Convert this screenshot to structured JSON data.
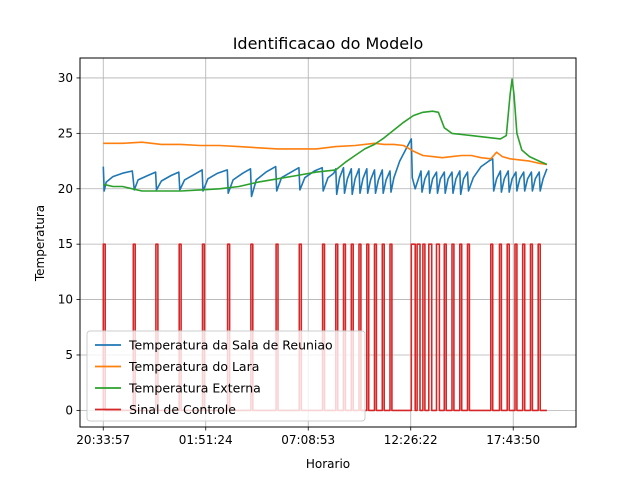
{
  "chart_data": {
    "type": "line",
    "title": "Identificacao do Modelo",
    "xlabel": "Horario",
    "ylabel": "Temperatura",
    "x_unit": "hours",
    "xlim": [
      -1.2,
      24.4
    ],
    "ylim": [
      -1.5,
      31.8
    ],
    "x_ticks": [
      {
        "value": 0.0,
        "label": "20:33:57"
      },
      {
        "value": 5.29,
        "label": "01:51:24"
      },
      {
        "value": 10.58,
        "label": "07:08:53"
      },
      {
        "value": 15.87,
        "label": "12:26:22"
      },
      {
        "value": 21.16,
        "label": "17:43:50"
      }
    ],
    "y_ticks": [
      0,
      5,
      10,
      15,
      20,
      25,
      30
    ],
    "grid": true,
    "legend_position": "lower-left",
    "series": [
      {
        "name": "Temperatura da Sala de Reuniao",
        "color": "#1f77b4",
        "points": [
          [
            0.0,
            22.0
          ],
          [
            0.05,
            19.8
          ],
          [
            0.15,
            20.6
          ],
          [
            0.5,
            21.1
          ],
          [
            1.0,
            21.4
          ],
          [
            1.5,
            21.6
          ],
          [
            1.6,
            19.9
          ],
          [
            1.8,
            20.8
          ],
          [
            2.3,
            21.2
          ],
          [
            2.7,
            21.5
          ],
          [
            2.75,
            19.9
          ],
          [
            3.0,
            20.7
          ],
          [
            3.5,
            21.2
          ],
          [
            3.9,
            21.5
          ],
          [
            3.95,
            19.9
          ],
          [
            4.2,
            20.8
          ],
          [
            4.7,
            21.3
          ],
          [
            5.1,
            21.7
          ],
          [
            5.15,
            19.8
          ],
          [
            5.4,
            20.9
          ],
          [
            5.9,
            21.4
          ],
          [
            6.4,
            21.7
          ],
          [
            6.45,
            19.6
          ],
          [
            6.7,
            20.8
          ],
          [
            7.2,
            21.4
          ],
          [
            7.6,
            21.8
          ],
          [
            7.65,
            19.3
          ],
          [
            7.9,
            20.8
          ],
          [
            8.4,
            21.5
          ],
          [
            8.9,
            22.0
          ],
          [
            8.95,
            19.8
          ],
          [
            9.2,
            21.0
          ],
          [
            9.7,
            21.5
          ],
          [
            10.1,
            21.9
          ],
          [
            10.15,
            19.9
          ],
          [
            10.4,
            21.0
          ],
          [
            10.9,
            21.6
          ],
          [
            11.3,
            21.9
          ],
          [
            11.35,
            19.8
          ],
          [
            11.6,
            21.0
          ],
          [
            11.9,
            21.4
          ],
          [
            12.0,
            21.8
          ],
          [
            12.05,
            19.5
          ],
          [
            12.2,
            21.0
          ],
          [
            12.4,
            21.9
          ],
          [
            12.45,
            19.6
          ],
          [
            12.6,
            20.9
          ],
          [
            12.8,
            21.8
          ],
          [
            12.85,
            19.5
          ],
          [
            13.0,
            20.9
          ],
          [
            13.2,
            21.8
          ],
          [
            13.25,
            19.6
          ],
          [
            13.4,
            20.9
          ],
          [
            13.6,
            21.8
          ],
          [
            13.65,
            19.6
          ],
          [
            13.8,
            20.8
          ],
          [
            14.0,
            21.7
          ],
          [
            14.05,
            19.6
          ],
          [
            14.2,
            20.8
          ],
          [
            14.4,
            21.7
          ],
          [
            14.45,
            19.6
          ],
          [
            14.6,
            20.8
          ],
          [
            14.8,
            21.6
          ],
          [
            14.85,
            19.7
          ],
          [
            15.0,
            21.0
          ],
          [
            15.3,
            22.5
          ],
          [
            15.6,
            23.5
          ],
          [
            15.9,
            24.5
          ],
          [
            15.95,
            21.0
          ],
          [
            16.1,
            20.0
          ],
          [
            16.4,
            21.6
          ],
          [
            16.45,
            19.7
          ],
          [
            16.6,
            20.9
          ],
          [
            16.8,
            21.6
          ],
          [
            16.85,
            19.6
          ],
          [
            17.0,
            20.9
          ],
          [
            17.2,
            21.5
          ],
          [
            17.25,
            19.6
          ],
          [
            17.4,
            20.9
          ],
          [
            17.6,
            21.5
          ],
          [
            17.65,
            19.6
          ],
          [
            17.8,
            20.9
          ],
          [
            18.0,
            21.5
          ],
          [
            18.05,
            19.6
          ],
          [
            18.2,
            20.9
          ],
          [
            18.4,
            21.6
          ],
          [
            18.45,
            19.5
          ],
          [
            18.6,
            20.9
          ],
          [
            18.8,
            21.5
          ],
          [
            18.85,
            19.8
          ],
          [
            19.1,
            21.0
          ],
          [
            19.5,
            22.0
          ],
          [
            19.9,
            22.5
          ],
          [
            20.1,
            22.7
          ],
          [
            20.15,
            19.8
          ],
          [
            20.3,
            20.9
          ],
          [
            20.5,
            21.6
          ],
          [
            20.55,
            19.7
          ],
          [
            20.7,
            20.9
          ],
          [
            20.9,
            21.6
          ],
          [
            20.95,
            19.7
          ],
          [
            21.1,
            20.9
          ],
          [
            21.3,
            21.5
          ],
          [
            21.35,
            19.8
          ],
          [
            21.5,
            20.9
          ],
          [
            21.7,
            21.5
          ],
          [
            21.75,
            19.8
          ],
          [
            21.9,
            20.9
          ],
          [
            22.1,
            21.5
          ],
          [
            22.15,
            19.8
          ],
          [
            22.3,
            20.9
          ],
          [
            22.5,
            21.5
          ],
          [
            22.55,
            19.8
          ],
          [
            22.7,
            20.9
          ],
          [
            22.9,
            21.8
          ]
        ]
      },
      {
        "name": "Temperatura do Lara",
        "color": "#ff7f0e",
        "points": [
          [
            0.0,
            24.1
          ],
          [
            1.0,
            24.1
          ],
          [
            2.0,
            24.2
          ],
          [
            3.0,
            24.0
          ],
          [
            4.0,
            24.0
          ],
          [
            5.0,
            23.9
          ],
          [
            6.0,
            23.9
          ],
          [
            7.0,
            23.8
          ],
          [
            8.0,
            23.7
          ],
          [
            9.0,
            23.6
          ],
          [
            10.0,
            23.6
          ],
          [
            11.0,
            23.6
          ],
          [
            12.0,
            23.8
          ],
          [
            13.0,
            23.9
          ],
          [
            14.0,
            24.1
          ],
          [
            14.5,
            24.0
          ],
          [
            15.0,
            24.0
          ],
          [
            15.5,
            23.9
          ],
          [
            16.0,
            23.4
          ],
          [
            16.5,
            23.0
          ],
          [
            17.0,
            22.9
          ],
          [
            17.5,
            22.8
          ],
          [
            18.0,
            22.9
          ],
          [
            18.5,
            23.0
          ],
          [
            19.0,
            23.0
          ],
          [
            19.5,
            22.8
          ],
          [
            20.0,
            22.7
          ],
          [
            20.3,
            23.3
          ],
          [
            20.6,
            22.9
          ],
          [
            21.0,
            22.7
          ],
          [
            21.5,
            22.6
          ],
          [
            22.0,
            22.5
          ],
          [
            22.5,
            22.3
          ],
          [
            22.9,
            22.2
          ]
        ]
      },
      {
        "name": "Temperatura Externa",
        "color": "#2ca02c",
        "points": [
          [
            0.0,
            20.4
          ],
          [
            0.5,
            20.2
          ],
          [
            1.0,
            20.2
          ],
          [
            1.5,
            20.0
          ],
          [
            2.0,
            19.8
          ],
          [
            3.0,
            19.8
          ],
          [
            4.0,
            19.8
          ],
          [
            5.0,
            19.9
          ],
          [
            6.0,
            20.0
          ],
          [
            7.0,
            20.2
          ],
          [
            8.0,
            20.6
          ],
          [
            9.0,
            20.9
          ],
          [
            10.0,
            21.2
          ],
          [
            11.0,
            21.5
          ],
          [
            12.0,
            21.7
          ],
          [
            12.5,
            22.4
          ],
          [
            13.0,
            23.0
          ],
          [
            13.5,
            23.6
          ],
          [
            14.0,
            24.0
          ],
          [
            14.5,
            24.6
          ],
          [
            15.0,
            25.3
          ],
          [
            15.5,
            26.0
          ],
          [
            16.0,
            26.6
          ],
          [
            16.5,
            26.9
          ],
          [
            17.0,
            27.0
          ],
          [
            17.3,
            26.9
          ],
          [
            17.6,
            25.5
          ],
          [
            18.0,
            25.0
          ],
          [
            18.5,
            24.9
          ],
          [
            19.0,
            24.8
          ],
          [
            19.5,
            24.7
          ],
          [
            20.0,
            24.6
          ],
          [
            20.5,
            24.5
          ],
          [
            20.8,
            24.8
          ],
          [
            21.0,
            28.5
          ],
          [
            21.1,
            29.9
          ],
          [
            21.2,
            28.5
          ],
          [
            21.35,
            25.0
          ],
          [
            21.6,
            23.5
          ],
          [
            22.0,
            22.9
          ],
          [
            22.5,
            22.5
          ],
          [
            22.9,
            22.2
          ]
        ]
      },
      {
        "name": "Sinal de Controle",
        "color": "#d62728",
        "on_level": 15,
        "off_level": 0,
        "pulses_on": [
          [
            0.0,
            0.1
          ],
          [
            1.55,
            1.65
          ],
          [
            2.72,
            2.82
          ],
          [
            3.92,
            4.02
          ],
          [
            5.12,
            5.22
          ],
          [
            6.42,
            6.52
          ],
          [
            7.62,
            7.72
          ],
          [
            8.92,
            9.02
          ],
          [
            10.12,
            10.22
          ],
          [
            11.32,
            11.42
          ],
          [
            12.0,
            12.1
          ],
          [
            12.4,
            12.5
          ],
          [
            12.8,
            12.9
          ],
          [
            13.2,
            13.3
          ],
          [
            13.6,
            13.7
          ],
          [
            14.0,
            14.1
          ],
          [
            14.4,
            14.5
          ],
          [
            14.8,
            14.9
          ],
          [
            15.9,
            16.1
          ],
          [
            16.2,
            16.35
          ],
          [
            16.5,
            16.6
          ],
          [
            16.8,
            16.95
          ],
          [
            17.2,
            17.35
          ],
          [
            17.6,
            17.7
          ],
          [
            18.0,
            18.1
          ],
          [
            18.4,
            18.5
          ],
          [
            18.8,
            18.9
          ],
          [
            20.0,
            20.1
          ],
          [
            20.45,
            20.55
          ],
          [
            20.85,
            20.95
          ],
          [
            21.25,
            21.35
          ],
          [
            21.65,
            21.75
          ],
          [
            22.05,
            22.15
          ],
          [
            22.45,
            22.55
          ]
        ],
        "x_end": 22.9
      }
    ]
  }
}
